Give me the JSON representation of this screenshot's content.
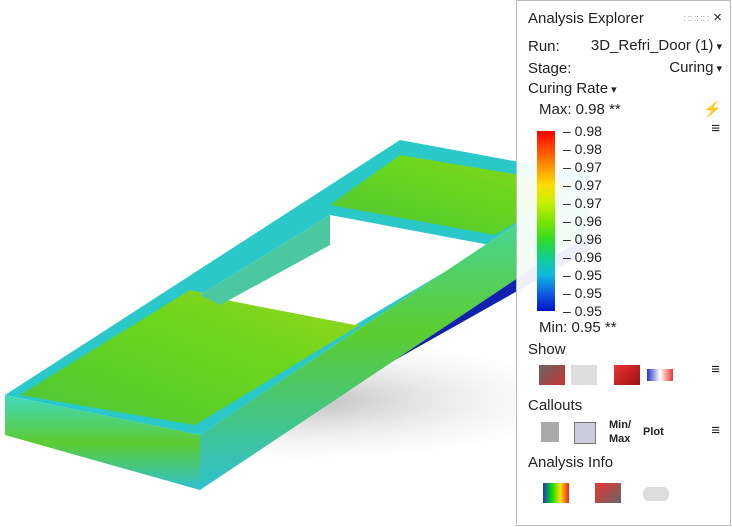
{
  "panel": {
    "title": "Analysis Explorer",
    "close": "×",
    "run_label": "Run:",
    "run_value": "3D_Refri_Door (1)",
    "stage_label": "Stage:",
    "stage_value": "Curing",
    "result": "Curing Rate",
    "max": "Max: 0.98 **",
    "min": "Min: 0.95 **",
    "legend_labels": [
      "0.98",
      "0.98",
      "0.97",
      "0.97",
      "0.97",
      "0.96",
      "0.96",
      "0.96",
      "0.95",
      "0.95",
      "0.95"
    ],
    "legend_colors": [
      "#ff0000",
      "#ff4a00",
      "#ff9500",
      "#ffdd00",
      "#c8f000",
      "#7ee600",
      "#33dd22",
      "#10d08a",
      "#10b8e0",
      "#1060e0",
      "#0010c8"
    ],
    "show": "Show",
    "callouts": "Callouts",
    "minmax": "Min/ Max",
    "plot": "Plot",
    "info": "Analysis Info"
  }
}
